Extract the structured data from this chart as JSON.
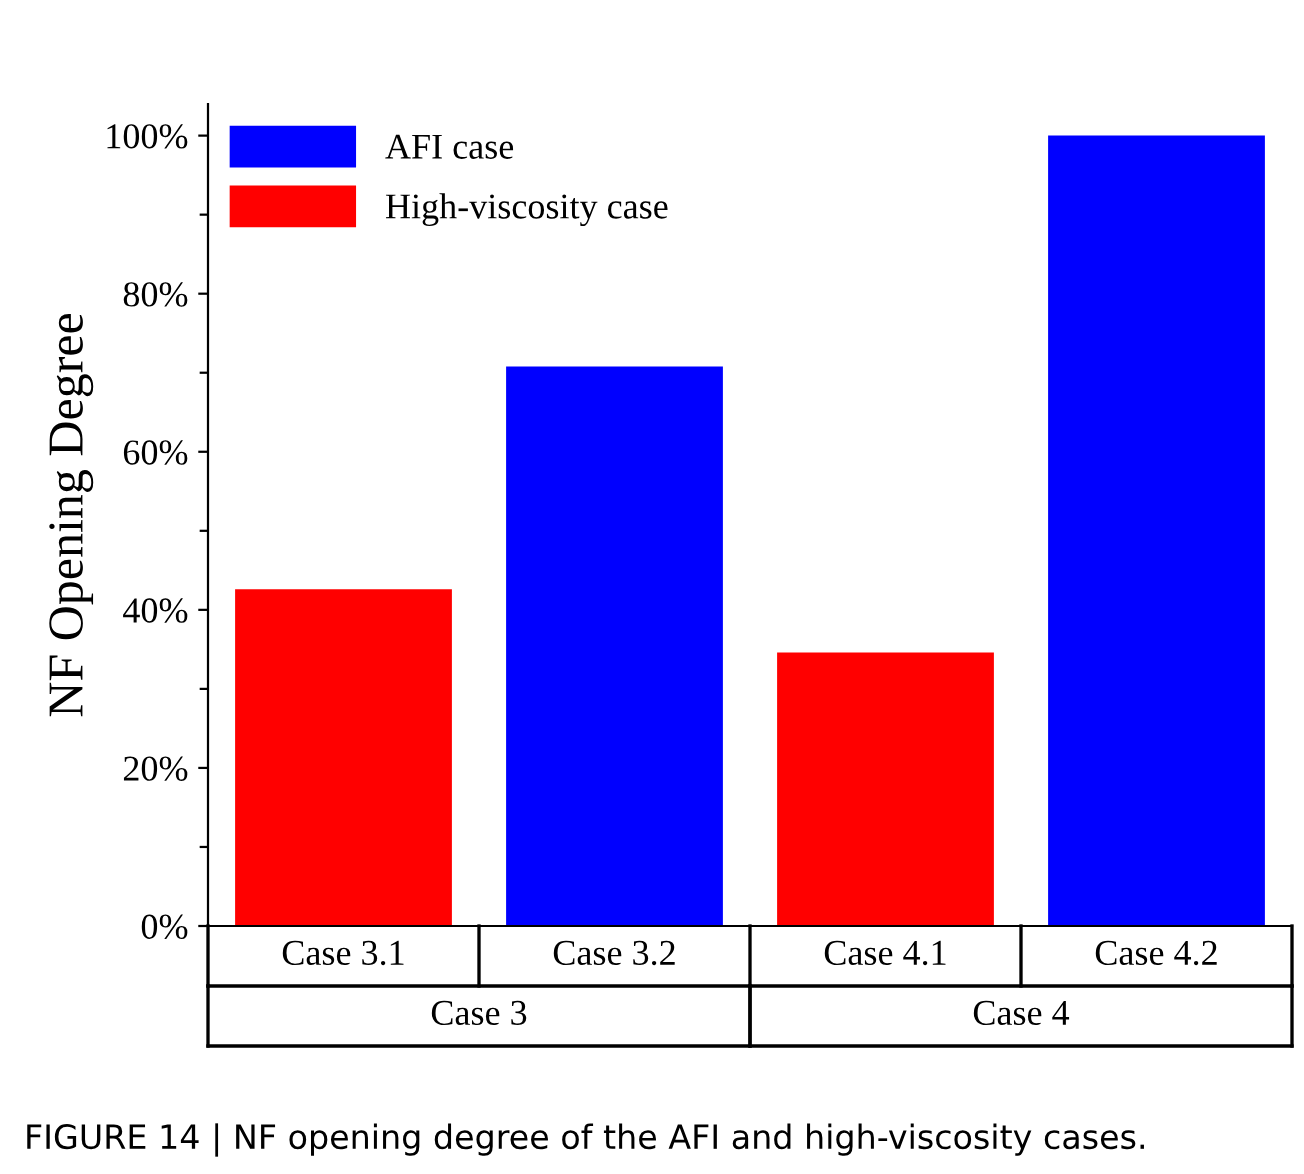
{
  "chart_data": {
    "type": "bar",
    "categories": [
      "Case 3.1",
      "Case 3.2",
      "Case 4.1",
      "Case 4.2"
    ],
    "series": [
      {
        "name": "AFI case",
        "color": "#0000ff",
        "values": [
          null,
          70.8,
          null,
          100
        ]
      },
      {
        "name": "High-viscosity case",
        "color": "#ff0000",
        "values": [
          42.6,
          null,
          34.6,
          null
        ]
      }
    ],
    "ylabel": "NF Opening Degree",
    "ylim": [
      0,
      104
    ],
    "yticks": [
      {
        "value": 0,
        "label": "0%"
      },
      {
        "value": 10,
        "label": null
      },
      {
        "value": 20,
        "label": "20%"
      },
      {
        "value": 30,
        "label": null
      },
      {
        "value": 40,
        "label": "40%"
      },
      {
        "value": 50,
        "label": null
      },
      {
        "value": 60,
        "label": "60%"
      },
      {
        "value": 70,
        "label": null
      },
      {
        "value": 80,
        "label": "80%"
      },
      {
        "value": 90,
        "label": null
      },
      {
        "value": 100,
        "label": "100%"
      }
    ],
    "legend": "top left",
    "grid": false,
    "annotations": [
      "Case 3",
      "Case 4",
      "FIGURE 14 | NF opening degree of the AFI and high-viscosity cases."
    ]
  }
}
